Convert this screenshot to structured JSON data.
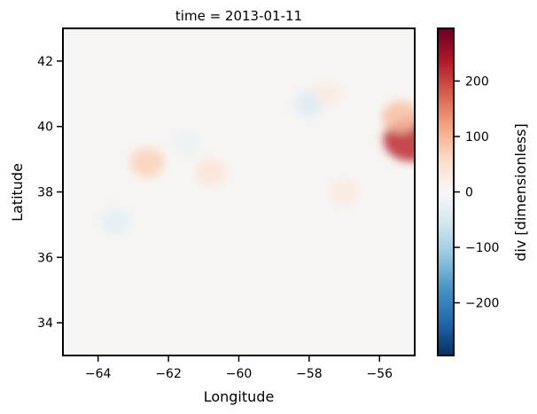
{
  "chart_data": {
    "type": "heatmap",
    "title": "time = 2013-01-11",
    "xlabel": "Longitude",
    "ylabel": "Latitude",
    "xlim": [
      -65,
      -55
    ],
    "ylim": [
      33,
      43
    ],
    "xticks": [
      -64,
      -62,
      -60,
      -58,
      -56
    ],
    "yticks": [
      34,
      36,
      38,
      40,
      42
    ],
    "xtick_labels": [
      "−64",
      "−62",
      "−60",
      "−58",
      "−56"
    ],
    "ytick_labels": [
      "34",
      "36",
      "38",
      "40",
      "42"
    ],
    "colorbar": {
      "label": "div [dimensionless]",
      "colormap": "RdBu_r",
      "range": [
        -295,
        295
      ],
      "ticks": [
        -200,
        -100,
        0,
        100,
        200
      ],
      "tick_labels": [
        "−200",
        "−100",
        "0",
        "100",
        "200"
      ],
      "colors": [
        "#053061",
        "#2166ac",
        "#4393c3",
        "#92c5de",
        "#d1e5f0",
        "#f7f7f7",
        "#fddbc7",
        "#f4a582",
        "#d6604d",
        "#b2182b",
        "#67001f"
      ]
    },
    "features": [
      {
        "lon": -55.1,
        "lat": 39.6,
        "div": 220
      },
      {
        "lon": -55.4,
        "lat": 40.3,
        "div": 90
      },
      {
        "lon": -62.6,
        "lat": 38.9,
        "div": 70
      },
      {
        "lon": -60.8,
        "lat": 38.6,
        "div": 40
      },
      {
        "lon": -57.0,
        "lat": 38.0,
        "div": 30
      },
      {
        "lon": -58.0,
        "lat": 40.7,
        "div": -40
      },
      {
        "lon": -61.5,
        "lat": 39.5,
        "div": -20
      },
      {
        "lon": -57.5,
        "lat": 41.0,
        "div": 25
      },
      {
        "lon": -63.5,
        "lat": 37.1,
        "div": -30
      }
    ]
  }
}
